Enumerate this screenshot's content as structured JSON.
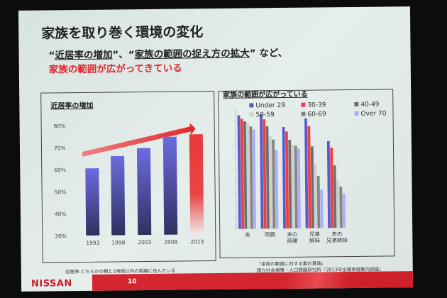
{
  "slide": {
    "title": "家族を取り巻く環境の変化",
    "q1": "“",
    "kw1": "近居率の増加",
    "q2": "”、“",
    "kw2": "家族の範囲の捉え方の拡大",
    "q3": "” など、",
    "highlight": "家族の範囲が広がってきている",
    "note": "近居率:どちらかの親と1時間以内の距離に住んでいる",
    "source1": "「家族の範囲に対する妻の意識」",
    "source2": "国立社会保障・人口問題研究所『2013年全国家庭動向調査』",
    "logo": "NISSAN",
    "page": "10"
  },
  "chart_data": [
    {
      "type": "bar",
      "title": "近居率の増加",
      "categories": [
        "1993",
        "1998",
        "2003",
        "2008",
        "2013"
      ],
      "values": [
        60.5,
        66,
        69.5,
        74.5,
        75.5
      ],
      "yticks": [
        "30%",
        "40%",
        "50%",
        "60%",
        "70%",
        "80%"
      ],
      "ylim": [
        30,
        80
      ],
      "colors": [
        "#5254b8",
        "#5254b8",
        "#5254b8",
        "#5254b8",
        "#e83a3a"
      ]
    },
    {
      "type": "bar",
      "title": "家族の範囲が広がっている",
      "categories": [
        "夫",
        "両親",
        "夫の両親",
        "兄弟姉妹",
        "夫の兄弟姉妹"
      ],
      "category_lines": [
        [
          "夫"
        ],
        [
          "両親"
        ],
        [
          "夫の",
          "両親"
        ],
        [
          "兄弟",
          "姉妹"
        ],
        [
          "夫の",
          "兄弟姉妹"
        ]
      ],
      "ylim": [
        0,
        100
      ],
      "series": [
        {
          "name": "Under 29",
          "color": "#5a5ad0",
          "values": [
            94.7,
            95.5,
            84.7,
            91.6,
            72.5
          ]
        },
        {
          "name": "30-39",
          "color": "#f03e3e",
          "values": [
            91.8,
            91.2,
            80.8,
            85.3,
            66.9
          ]
        },
        {
          "name": "40-49",
          "color": "#6e6e6e",
          "values": [
            89.6,
            85.3,
            73.9,
            68.2,
            52.2
          ]
        },
        {
          "name": "50-59",
          "color": "#cfcfcf",
          "values": [
            88.8,
            76.9,
            69.6,
            53.5,
            39.4
          ]
        },
        {
          "name": "60-69",
          "color": "#858585",
          "values": [
            85.3,
            74.3,
            69,
            43.5,
            34.5
          ]
        },
        {
          "name": "Over 70",
          "color": "#adadf8",
          "values": [
            82.9,
            65.7,
            66.5,
            32,
            28.6
          ]
        }
      ]
    }
  ]
}
